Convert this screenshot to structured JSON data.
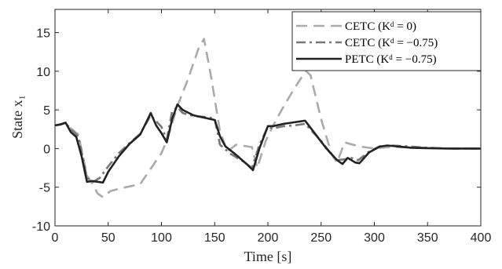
{
  "chart_data": {
    "type": "line",
    "xlabel": "Time [s]",
    "ylabel": "State x₁",
    "xlim": [
      0,
      400
    ],
    "ylim": [
      -10,
      18
    ],
    "xticks": [
      0,
      50,
      100,
      150,
      200,
      250,
      300,
      350,
      400
    ],
    "yticks": [
      -10,
      -5,
      0,
      5,
      10,
      15
    ],
    "xtick_labels": [
      "0",
      "50",
      "100",
      "150",
      "200",
      "250",
      "300",
      "350",
      "400"
    ],
    "ytick_labels": [
      "-10",
      "-5",
      "0",
      "5",
      "10",
      "15"
    ],
    "grid": false,
    "legend_position": "top-right",
    "series": [
      {
        "name": "CETC (K_d = 0)",
        "legend_label": "CETC (Kᵈ = 0)",
        "style": "dashed",
        "color": "#aaaaaa",
        "points": [
          [
            0,
            3.0
          ],
          [
            10,
            3.3
          ],
          [
            15,
            2.6
          ],
          [
            22,
            1.8
          ],
          [
            30,
            -3.5
          ],
          [
            35,
            -4.5
          ],
          [
            40,
            -5.8
          ],
          [
            45,
            -6.3
          ],
          [
            52,
            -5.5
          ],
          [
            60,
            -5.2
          ],
          [
            70,
            -4.9
          ],
          [
            80,
            -4.6
          ],
          [
            90,
            -2.6
          ],
          [
            100,
            -0.6
          ],
          [
            105,
            1.0
          ],
          [
            115,
            5.5
          ],
          [
            125,
            9.0
          ],
          [
            135,
            13.0
          ],
          [
            140,
            14.2
          ],
          [
            147,
            9.0
          ],
          [
            155,
            2.2
          ],
          [
            162,
            -0.4
          ],
          [
            170,
            0.5
          ],
          [
            180,
            0.3
          ],
          [
            185,
            0.2
          ],
          [
            190,
            -2.5
          ],
          [
            198,
            1.0
          ],
          [
            205,
            3.0
          ],
          [
            215,
            5.5
          ],
          [
            225,
            7.8
          ],
          [
            232,
            9.3
          ],
          [
            236,
            10.0
          ],
          [
            240,
            9.5
          ],
          [
            250,
            3.8
          ],
          [
            260,
            -0.8
          ],
          [
            265,
            -1.8
          ],
          [
            272,
            0.8
          ],
          [
            285,
            0.3
          ],
          [
            300,
            0.0
          ],
          [
            310,
            0.15
          ],
          [
            320,
            0.2
          ],
          [
            340,
            0.15
          ],
          [
            360,
            0.05
          ],
          [
            380,
            0.0
          ],
          [
            400,
            0.0
          ]
        ]
      },
      {
        "name": "CETC (K_d = -0.75)",
        "legend_label": "CETC (Kᵈ = −0.75)",
        "style": "dashdot",
        "color": "#777777",
        "points": [
          [
            0,
            3.0
          ],
          [
            10,
            3.3
          ],
          [
            15,
            2.5
          ],
          [
            22,
            1.6
          ],
          [
            30,
            -3.8
          ],
          [
            36,
            -4.3
          ],
          [
            42,
            -3.8
          ],
          [
            50,
            -2.3
          ],
          [
            60,
            -0.6
          ],
          [
            70,
            0.7
          ],
          [
            80,
            1.9
          ],
          [
            90,
            4.3
          ],
          [
            100,
            2.8
          ],
          [
            105,
            1.2
          ],
          [
            110,
            4.8
          ],
          [
            115,
            5.4
          ],
          [
            120,
            4.6
          ],
          [
            130,
            4.2
          ],
          [
            140,
            4.1
          ],
          [
            150,
            3.9
          ],
          [
            155,
            0.5
          ],
          [
            165,
            -0.7
          ],
          [
            175,
            -1.5
          ],
          [
            185,
            -2.5
          ],
          [
            192,
            0.5
          ],
          [
            200,
            2.8
          ],
          [
            205,
            2.6
          ],
          [
            215,
            2.9
          ],
          [
            225,
            3.0
          ],
          [
            235,
            3.2
          ],
          [
            250,
            1.0
          ],
          [
            260,
            -0.8
          ],
          [
            265,
            -1.5
          ],
          [
            272,
            -1.4
          ],
          [
            278,
            -1.2
          ],
          [
            285,
            -1.5
          ],
          [
            295,
            -0.4
          ],
          [
            305,
            0.3
          ],
          [
            315,
            0.4
          ],
          [
            330,
            0.3
          ],
          [
            350,
            0.1
          ],
          [
            370,
            0.0
          ],
          [
            400,
            0.0
          ]
        ]
      },
      {
        "name": "PETC (K_d = -0.75)",
        "legend_label": "PETC (Kᵈ = −0.75)",
        "style": "solid",
        "color": "#222222",
        "points": [
          [
            0,
            3.0
          ],
          [
            5,
            3.1
          ],
          [
            10,
            3.35
          ],
          [
            15,
            2.1
          ],
          [
            20,
            1.5
          ],
          [
            25,
            -1.0
          ],
          [
            30,
            -4.3
          ],
          [
            35,
            -4.2
          ],
          [
            40,
            -4.3
          ],
          [
            45,
            -4.4
          ],
          [
            50,
            -3.0
          ],
          [
            60,
            -1.0
          ],
          [
            70,
            0.6
          ],
          [
            80,
            1.8
          ],
          [
            85,
            3.2
          ],
          [
            90,
            4.6
          ],
          [
            95,
            3.0
          ],
          [
            100,
            2.0
          ],
          [
            105,
            0.8
          ],
          [
            110,
            3.8
          ],
          [
            115,
            5.7
          ],
          [
            120,
            5.0
          ],
          [
            130,
            4.3
          ],
          [
            140,
            4.0
          ],
          [
            150,
            3.7
          ],
          [
            155,
            1.6
          ],
          [
            160,
            0.3
          ],
          [
            170,
            -0.8
          ],
          [
            180,
            -2.0
          ],
          [
            186,
            -2.8
          ],
          [
            192,
            0.0
          ],
          [
            200,
            2.9
          ],
          [
            205,
            2.9
          ],
          [
            215,
            3.2
          ],
          [
            225,
            3.4
          ],
          [
            235,
            3.6
          ],
          [
            245,
            1.8
          ],
          [
            255,
            0.0
          ],
          [
            265,
            -1.5
          ],
          [
            270,
            -2.0
          ],
          [
            275,
            -1.2
          ],
          [
            282,
            -1.8
          ],
          [
            286,
            -1.9
          ],
          [
            295,
            -0.5
          ],
          [
            305,
            0.25
          ],
          [
            312,
            0.4
          ],
          [
            320,
            0.3
          ],
          [
            335,
            0.1
          ],
          [
            350,
            0.05
          ],
          [
            370,
            0.0
          ],
          [
            400,
            0.0
          ]
        ]
      }
    ]
  }
}
